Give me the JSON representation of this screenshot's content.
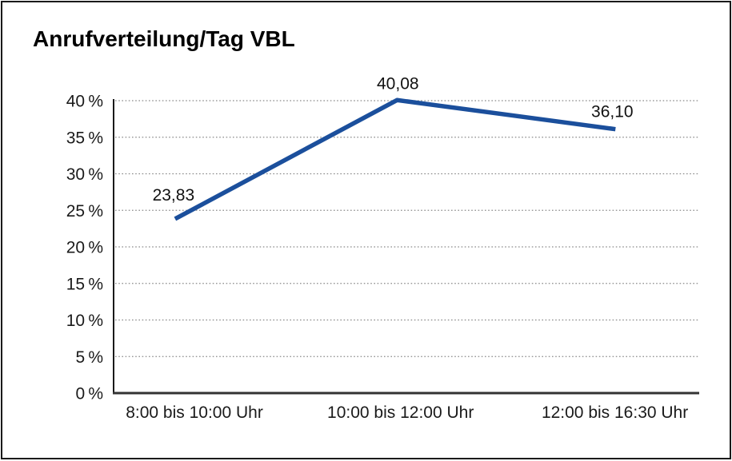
{
  "window": {
    "background": "#ffffff",
    "border_color": "#1a1a1a"
  },
  "chart_data": {
    "type": "line",
    "title": "Anrufverteilung/Tag VBL",
    "categories": [
      "8:00 bis 10:00 Uhr",
      "10:00 bis 12:00 Uhr",
      "12:00 bis 16:30 Uhr"
    ],
    "values": [
      23.83,
      40.08,
      36.1
    ],
    "data_labels": [
      "23,83",
      "40,08",
      "36,10"
    ],
    "y_ticks": [
      {
        "value": 0,
        "label": "0 %"
      },
      {
        "value": 5,
        "label": "5 %"
      },
      {
        "value": 10,
        "label": "10 %"
      },
      {
        "value": 15,
        "label": "15 %"
      },
      {
        "value": 20,
        "label": "20 %"
      },
      {
        "value": 25,
        "label": "25 %"
      },
      {
        "value": 30,
        "label": "30 %"
      },
      {
        "value": 35,
        "label": "35 %"
      },
      {
        "value": 40,
        "label": "40 %"
      }
    ],
    "ylim": [
      0,
      40
    ],
    "xlabel": "",
    "ylabel": "",
    "legend": "none",
    "grid": "horizontal-dotted",
    "line_color": "#1B4F9C",
    "axis_color": "#333333",
    "grid_color": "#8a8a8a",
    "label_color": "#1a1a1a"
  }
}
